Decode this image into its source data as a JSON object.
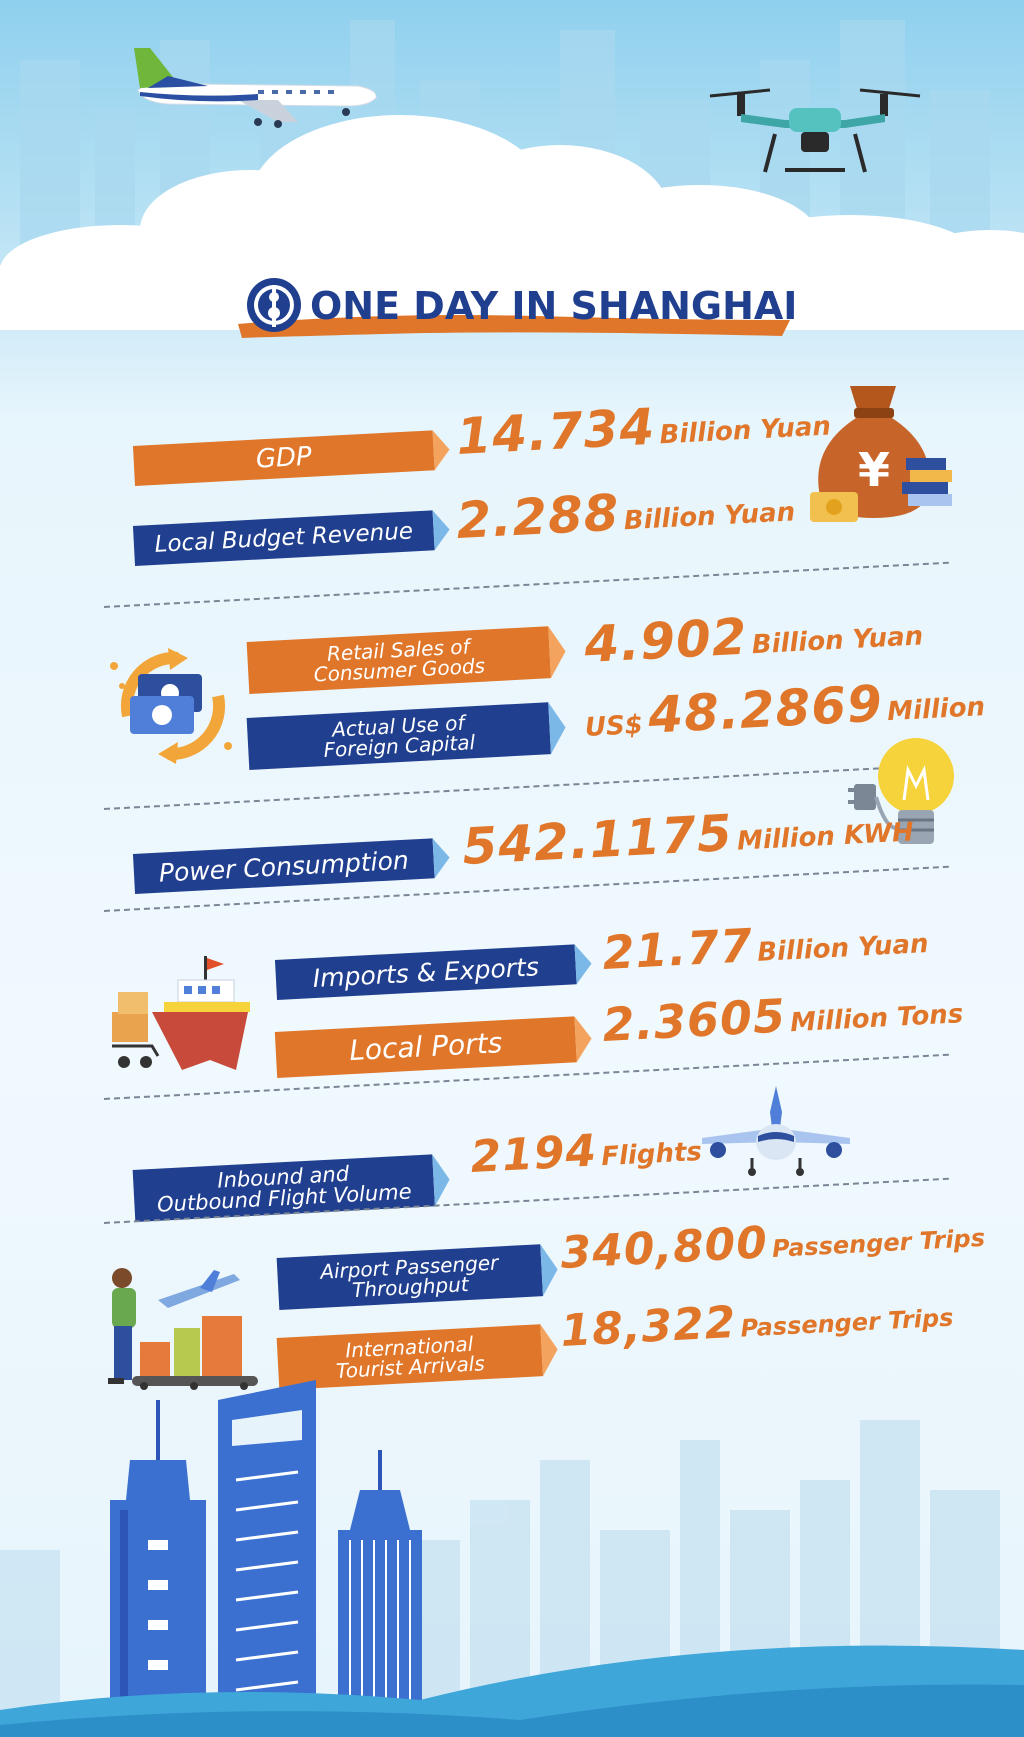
{
  "header": {
    "title": "ONE DAY IN SHANGHAI"
  },
  "stats": {
    "gdp": {
      "label": "GDP",
      "value": "14.734",
      "unit": "Billion Yuan"
    },
    "budget": {
      "label": "Local Budget Revenue",
      "value": "2.288",
      "unit": "Billion Yuan"
    },
    "retail": {
      "label": "Retail Sales of\nConsumer Goods",
      "value": "4.902",
      "unit": "Billion Yuan"
    },
    "foreign": {
      "label": "Actual Use of\nForeign Capital",
      "prefix": "US$",
      "value": "48.2869",
      "unit": "Million"
    },
    "power": {
      "label": "Power Consumption",
      "value": "542.1175",
      "unit": "Million KWH"
    },
    "trade": {
      "label": "Imports & Exports",
      "value": "21.77",
      "unit": "Billion Yuan"
    },
    "ports": {
      "label": "Local Ports",
      "value": "2.3605",
      "unit": "Million Tons"
    },
    "flights": {
      "label": "Inbound and\nOutbound Flight Volume",
      "value": "2194",
      "unit": "Flights"
    },
    "airport": {
      "label": "Airport Passenger\nThroughput",
      "value": "340,800",
      "unit": "Passenger Trips"
    },
    "tourists": {
      "label": "International\nTourist Arrivals",
      "value": "18,322",
      "unit": "Passenger Trips"
    }
  },
  "colors": {
    "orange": "#e0762a",
    "navy": "#213f8f",
    "sky": "#8fd0ee",
    "building_blue": "#3b6fd0"
  },
  "icons": [
    "airliner-icon",
    "drone-icon",
    "money-bag-icon",
    "cash-exchange-icon",
    "light-bulb-icon",
    "cargo-ship-icon",
    "airplane-icon",
    "traveler-luggage-icon",
    "skyline-illustration"
  ]
}
